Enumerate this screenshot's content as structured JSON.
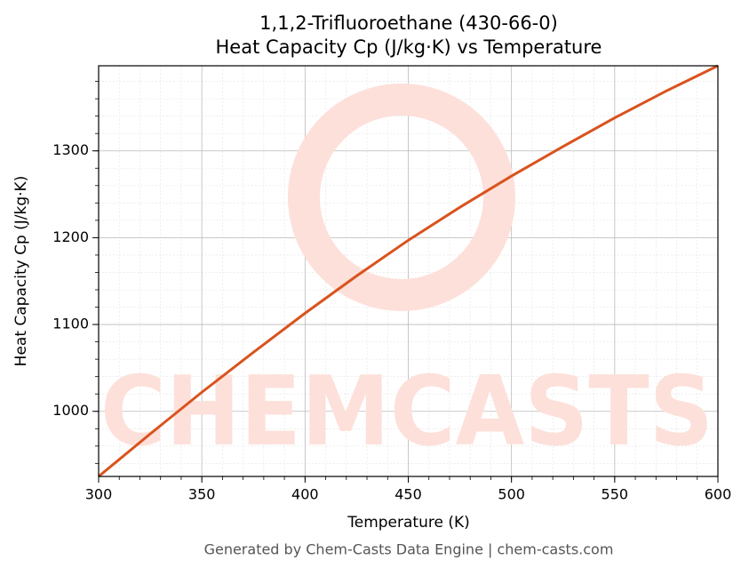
{
  "chart_data": {
    "type": "line",
    "title": "1,1,2-Trifluoroethane (430-66-0)",
    "subtitle": "Heat Capacity Cp (J/kg·K) vs Temperature",
    "x_label": "Temperature (K)",
    "y_label": "Heat Capacity Cp (J/kg·K)",
    "footer": "Generated by Chem-Casts Data Engine | chem-casts.com",
    "watermark": "CHEMCASTS",
    "x": [
      300,
      325,
      350,
      375,
      400,
      425,
      450,
      475,
      500,
      525,
      550,
      575,
      600
    ],
    "series": [
      {
        "name": "Cp",
        "color": "#d9531e",
        "values": [
          925,
          974,
          1022,
          1068,
          1113,
          1156,
          1197,
          1235,
          1271,
          1305,
          1338,
          1369,
          1398
        ]
      }
    ],
    "xlim": [
      300,
      600
    ],
    "xticks": [
      300,
      350,
      400,
      450,
      500,
      550,
      600
    ],
    "ylim": [
      925,
      1398
    ],
    "yticks": [
      1000,
      1100,
      1200,
      1300
    ],
    "grid": true,
    "minor_grid": true
  }
}
